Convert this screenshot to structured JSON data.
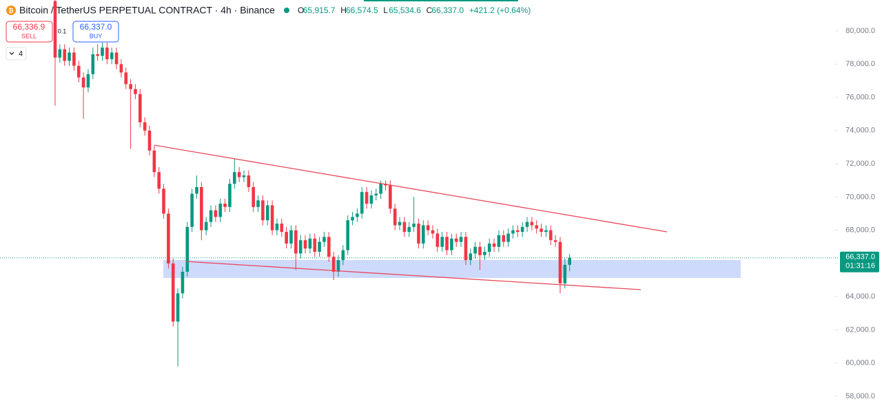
{
  "header": {
    "title": "Bitcoin / TetherUS PERPETUAL CONTRACT · 4h · Binance",
    "ohlc": [
      {
        "key": "O",
        "value": "65,915.7"
      },
      {
        "key": "H",
        "value": "66,574.5"
      },
      {
        "key": "L",
        "value": "65,534.6"
      },
      {
        "key": "C",
        "value": "66,337.0"
      }
    ],
    "change": "+421.2 (+0.64%)"
  },
  "trade_panel": {
    "sell_price": "66,336.9",
    "sell": "SELL",
    "quantity": "0.1",
    "buy_price": "66,337.0",
    "buy": "BUY"
  },
  "indicators_count": "4",
  "chart_data": {
    "type": "candlestick",
    "up_color": "#089981",
    "down_color": "#f23645",
    "open": [
      81800,
      78400,
      78900,
      78200,
      78700,
      77900,
      77200,
      76600,
      77400,
      78600,
      78500,
      79000,
      78300,
      78700,
      78000,
      77500,
      76800,
      76500,
      76200,
      74500,
      74000,
      72800,
      71500,
      70500,
      69000,
      66000,
      62500,
      64200,
      65500,
      68200,
      70200,
      70600,
      68000,
      68500,
      69200,
      68800,
      69600,
      69400,
      70800,
      71500,
      71200,
      71300,
      70600,
      69400,
      69800,
      68600,
      69500,
      68000,
      68400,
      67900,
      67200,
      68000,
      66600,
      67400,
      66900,
      67500,
      66700,
      67300,
      67600,
      66400,
      65500,
      66200,
      66800,
      68600,
      68800,
      69000,
      70300,
      69600,
      70100,
      70200,
      70800,
      70700,
      69300,
      68300,
      68500,
      67900,
      68200,
      68400,
      67200,
      68300,
      68000,
      67800,
      67000,
      67600,
      66800,
      67500,
      67300,
      67600,
      66200,
      66600,
      67000,
      66500,
      66700,
      67200,
      67000,
      67700,
      67300,
      67800,
      68000,
      67900,
      68200,
      68500,
      68300,
      68100,
      67900,
      68000,
      67400,
      67300,
      64800,
      65915.7
    ],
    "high": [
      81900,
      79200,
      79200,
      79000,
      79000,
      78200,
      77500,
      77700,
      79000,
      79200,
      79300,
      79300,
      79000,
      79000,
      78300,
      77800,
      77100,
      76800,
      76500,
      74800,
      74300,
      73100,
      71800,
      70800,
      69300,
      66300,
      64500,
      65800,
      68500,
      70500,
      71300,
      70900,
      68800,
      69500,
      69500,
      69900,
      69900,
      71100,
      72300,
      71800,
      71600,
      71600,
      70900,
      70100,
      70100,
      69800,
      69800,
      68700,
      68700,
      68200,
      68300,
      68300,
      67700,
      67700,
      67800,
      67800,
      67600,
      67900,
      67900,
      66700,
      66500,
      67100,
      68900,
      69100,
      69300,
      70600,
      70600,
      70400,
      70500,
      71000,
      71000,
      71000,
      69600,
      68800,
      68800,
      68500,
      70000,
      68700,
      68600,
      68600,
      68300,
      68100,
      67900,
      67900,
      67800,
      67800,
      67900,
      67900,
      66900,
      67300,
      67300,
      67000,
      67500,
      67500,
      68000,
      68000,
      68100,
      68300,
      68300,
      68500,
      68800,
      68800,
      68600,
      68400,
      68300,
      68300,
      67700,
      67600,
      66300,
      66574.5
    ],
    "low": [
      75500,
      78100,
      77900,
      77900,
      77600,
      76900,
      74700,
      76300,
      77100,
      78200,
      78200,
      78000,
      78000,
      77700,
      77200,
      76500,
      72900,
      75900,
      74200,
      73700,
      72500,
      71200,
      70200,
      68700,
      65700,
      62200,
      59800,
      63900,
      65200,
      67900,
      69900,
      67400,
      67700,
      68200,
      68500,
      68500,
      69100,
      69100,
      70500,
      70900,
      70900,
      70300,
      69100,
      69100,
      68300,
      68300,
      67700,
      67700,
      67600,
      66900,
      66900,
      65600,
      66300,
      66600,
      66600,
      66400,
      66400,
      67000,
      66100,
      65000,
      65200,
      65900,
      66500,
      68300,
      68500,
      68700,
      69300,
      69300,
      69800,
      69900,
      70400,
      69000,
      68000,
      68000,
      67600,
      67600,
      67900,
      66900,
      66900,
      67700,
      67500,
      66700,
      66700,
      66500,
      66500,
      67000,
      67000,
      65900,
      65900,
      66300,
      65600,
      66200,
      66400,
      66700,
      66700,
      67000,
      67000,
      67500,
      67600,
      67600,
      67900,
      68000,
      67800,
      67600,
      67600,
      67100,
      67000,
      64200,
      64500,
      65534.6
    ],
    "close": [
      78400,
      78900,
      78200,
      78700,
      77900,
      77200,
      76600,
      77400,
      78600,
      78500,
      79000,
      78300,
      78700,
      78000,
      77500,
      76800,
      76500,
      76200,
      74500,
      74000,
      72800,
      71500,
      70500,
      69000,
      66000,
      62500,
      64200,
      65500,
      68200,
      70200,
      70600,
      68000,
      68500,
      69200,
      68800,
      69600,
      69400,
      70800,
      71500,
      71200,
      71300,
      70600,
      69400,
      69800,
      68600,
      69500,
      68000,
      68400,
      67900,
      67200,
      68000,
      66600,
      67400,
      66900,
      67500,
      66700,
      67300,
      67600,
      66400,
      65500,
      66200,
      66800,
      68600,
      68800,
      69000,
      70300,
      69600,
      70100,
      70200,
      70800,
      70700,
      69300,
      68300,
      68500,
      67900,
      68200,
      68400,
      67200,
      68300,
      68000,
      67800,
      67000,
      67600,
      66800,
      67500,
      67300,
      67600,
      66200,
      66600,
      67000,
      66500,
      66700,
      67200,
      67000,
      67700,
      67300,
      67800,
      68000,
      67900,
      68200,
      68500,
      68300,
      68100,
      67900,
      68000,
      67400,
      67300,
      64800,
      65915.7,
      66337
    ],
    "ylim": [
      56633,
      81865
    ],
    "yticks": [
      {
        "value": 58000,
        "label": "58,000.0"
      },
      {
        "value": 60000,
        "label": "60,000.0"
      },
      {
        "value": 62000,
        "label": "62,000.0"
      },
      {
        "value": 64000,
        "label": "64,000.0"
      },
      {
        "value": 66000,
        "label": "66,000.0"
      },
      {
        "value": 68000,
        "label": "68,000.0"
      },
      {
        "value": 70000,
        "label": "70,000.0"
      },
      {
        "value": 72000,
        "label": "72,000.0"
      },
      {
        "value": 74000,
        "label": "74,000.0"
      },
      {
        "value": 76000,
        "label": "76,000.0"
      },
      {
        "value": 78000,
        "label": "78,000.0"
      },
      {
        "value": 80000,
        "label": "80,000.0"
      }
    ],
    "grid": false,
    "price_line": {
      "value": 66337,
      "label": "66,337.0",
      "countdown": "01:31:16",
      "color": "#089981"
    },
    "trendlines": [
      {
        "y": [
          73122,
          67901
        ],
        "color": "#e8475a"
      },
      {
        "y": [
          66120,
          64421
        ],
        "color": "#e8475a"
      }
    ],
    "zone": {
      "y": [
        66203,
        65125
      ],
      "color": "#c5d3fb"
    }
  }
}
